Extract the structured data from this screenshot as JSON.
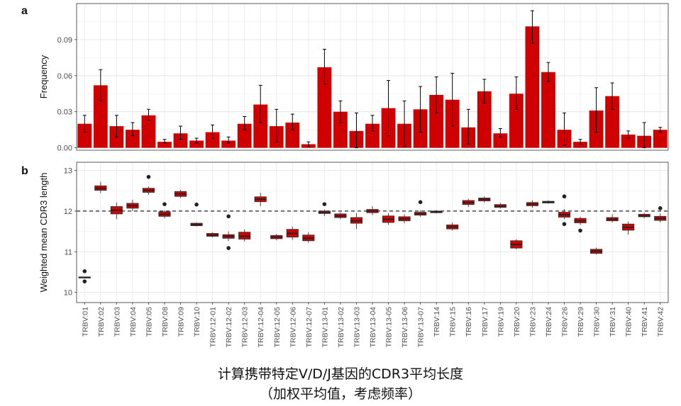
{
  "figure": {
    "caption_line1": "计算携带特定V/D/J基因的CDR3平均长度",
    "caption_line2": "（加权平均值，考虑频率）"
  },
  "chart_data": [
    {
      "panel_label": "a",
      "type": "bar",
      "ylabel": "Frequency",
      "ylim": [
        -0.002,
        0.12
      ],
      "yticks": [
        "0.00",
        "0.03",
        "0.06",
        "0.09"
      ],
      "ytick_values": [
        0,
        0.03,
        0.06,
        0.09
      ],
      "grid": true,
      "bar_color": "#d00000",
      "categories": [
        "TRBV:01",
        "TRBV:02",
        "TRBV:03",
        "TRBV:04",
        "TRBV:05",
        "TRBV:08",
        "TRBV:09",
        "TRBV:10",
        "TRBV:12-01",
        "TRBV:12-02",
        "TRBV:12-03",
        "TRBV:12-04",
        "TRBV:12-05",
        "TRBV:12-06",
        "TRBV:12-07",
        "TRBV:13-01",
        "TRBV:13-02",
        "TRBV:13-03",
        "TRBV:13-04",
        "TRBV:13-05",
        "TRBV:13-06",
        "TRBV:13-07",
        "TRBV:14",
        "TRBV:15",
        "TRBV:16",
        "TRBV:17",
        "TRBV:19",
        "TRBV:20",
        "TRBV:23",
        "TRBV:24",
        "TRBV:26",
        "TRBV:29",
        "TRBV:30",
        "TRBV:31",
        "TRBV:40",
        "TRBV:41",
        "TRBV:42"
      ],
      "values": [
        0.02,
        0.052,
        0.018,
        0.015,
        0.027,
        0.005,
        0.012,
        0.006,
        0.013,
        0.006,
        0.02,
        0.036,
        0.018,
        0.021,
        0.003,
        0.067,
        0.03,
        0.014,
        0.02,
        0.033,
        0.02,
        0.032,
        0.044,
        0.04,
        0.017,
        0.047,
        0.012,
        0.045,
        0.101,
        0.063,
        0.015,
        0.005,
        0.031,
        0.043,
        0.011,
        0.01,
        0.015
      ],
      "err_low": [
        0.013,
        0.039,
        0.009,
        0.01,
        0.023,
        0.004,
        0.007,
        0.004,
        0.008,
        0.004,
        0.015,
        0.021,
        0.005,
        0.015,
        0.001,
        0.053,
        0.021,
        0.0,
        0.014,
        0.01,
        0.001,
        0.013,
        0.029,
        0.018,
        0.003,
        0.037,
        0.009,
        0.032,
        0.087,
        0.055,
        0.002,
        0.003,
        0.013,
        0.032,
        0.008,
        0.0,
        0.013
      ],
      "err_high": [
        0.027,
        0.065,
        0.027,
        0.021,
        0.032,
        0.007,
        0.018,
        0.008,
        0.019,
        0.009,
        0.026,
        0.052,
        0.032,
        0.028,
        0.005,
        0.082,
        0.039,
        0.029,
        0.027,
        0.056,
        0.039,
        0.051,
        0.059,
        0.062,
        0.032,
        0.057,
        0.016,
        0.059,
        0.114,
        0.071,
        0.029,
        0.007,
        0.05,
        0.054,
        0.014,
        0.021,
        0.017
      ]
    },
    {
      "panel_label": "b",
      "type": "box",
      "ylabel": "Weighted mean  CDR3 length",
      "ylim": [
        9.75,
        13.2
      ],
      "yticks": [
        "10",
        "11",
        "12",
        "13"
      ],
      "ytick_values": [
        10,
        11,
        12,
        13
      ],
      "reference_line": 12,
      "grid": true,
      "box_color": "#d00000",
      "categories": [
        "TRBV:01",
        "TRBV:02",
        "TRBV:03",
        "TRBV:04",
        "TRBV:05",
        "TRBV:08",
        "TRBV:09",
        "TRBV:10",
        "TRBV:12-01",
        "TRBV:12-02",
        "TRBV:12-03",
        "TRBV:12-04",
        "TRBV:12-05",
        "TRBV:12-06",
        "TRBV:12-07",
        "TRBV:13-01",
        "TRBV:13-02",
        "TRBV:13-03",
        "TRBV:13-04",
        "TRBV:13-05",
        "TRBV:13-06",
        "TRBV:13-07",
        "TRBV:14",
        "TRBV:15",
        "TRBV:16",
        "TRBV:17",
        "TRBV:19",
        "TRBV:20",
        "TRBV:23",
        "TRBV:24",
        "TRBV:26",
        "TRBV:29",
        "TRBV:30",
        "TRBV:31",
        "TRBV:40",
        "TRBV:41",
        "TRBV:42"
      ],
      "boxes": [
        {
          "q1": 10.36,
          "median": 10.37,
          "q3": 10.38,
          "wlo": 10.36,
          "whi": 10.38,
          "outliers": [
            10.52,
            10.27
          ]
        },
        {
          "q1": 12.51,
          "median": 12.56,
          "q3": 12.62,
          "wlo": 12.44,
          "whi": 12.72,
          "outliers": []
        },
        {
          "q1": 11.93,
          "median": 12.02,
          "q3": 12.11,
          "wlo": 11.8,
          "whi": 12.21,
          "outliers": []
        },
        {
          "q1": 12.07,
          "median": 12.13,
          "q3": 12.19,
          "wlo": 12.0,
          "whi": 12.28,
          "outliers": []
        },
        {
          "q1": 12.46,
          "median": 12.51,
          "q3": 12.56,
          "wlo": 12.4,
          "whi": 12.6,
          "outliers": [
            12.84
          ]
        },
        {
          "q1": 11.87,
          "median": 11.92,
          "q3": 11.98,
          "wlo": 11.82,
          "whi": 12.02,
          "outliers": [
            12.17
          ]
        },
        {
          "q1": 12.36,
          "median": 12.42,
          "q3": 12.48,
          "wlo": 12.32,
          "whi": 12.52,
          "outliers": []
        },
        {
          "q1": 11.64,
          "median": 11.67,
          "q3": 11.7,
          "wlo": 11.62,
          "whi": 11.72,
          "outliers": [
            12.16
          ]
        },
        {
          "q1": 11.38,
          "median": 11.41,
          "q3": 11.45,
          "wlo": 11.35,
          "whi": 11.48,
          "outliers": []
        },
        {
          "q1": 11.33,
          "median": 11.38,
          "q3": 11.42,
          "wlo": 11.26,
          "whi": 11.5,
          "outliers": [
            11.87,
            11.09
          ]
        },
        {
          "q1": 11.31,
          "median": 11.38,
          "q3": 11.48,
          "wlo": 11.25,
          "whi": 11.55,
          "outliers": []
        },
        {
          "q1": 12.23,
          "median": 12.29,
          "q3": 12.35,
          "wlo": 12.12,
          "whi": 12.45,
          "outliers": []
        },
        {
          "q1": 11.32,
          "median": 11.36,
          "q3": 11.4,
          "wlo": 11.28,
          "whi": 11.44,
          "outliers": []
        },
        {
          "q1": 11.36,
          "median": 11.45,
          "q3": 11.55,
          "wlo": 11.29,
          "whi": 11.62,
          "outliers": []
        },
        {
          "q1": 11.27,
          "median": 11.33,
          "q3": 11.41,
          "wlo": 11.22,
          "whi": 11.48,
          "outliers": []
        },
        {
          "q1": 11.94,
          "median": 11.97,
          "q3": 12.0,
          "wlo": 11.88,
          "whi": 12.04,
          "outliers": [
            12.17
          ]
        },
        {
          "q1": 11.84,
          "median": 11.88,
          "q3": 11.93,
          "wlo": 11.8,
          "whi": 11.97,
          "outliers": []
        },
        {
          "q1": 11.7,
          "median": 11.76,
          "q3": 11.84,
          "wlo": 11.56,
          "whi": 11.95,
          "outliers": []
        },
        {
          "q1": 11.96,
          "median": 12.0,
          "q3": 12.04,
          "wlo": 11.9,
          "whi": 12.12,
          "outliers": []
        },
        {
          "q1": 11.72,
          "median": 11.8,
          "q3": 11.88,
          "wlo": 11.66,
          "whi": 11.95,
          "outliers": []
        },
        {
          "q1": 11.76,
          "median": 11.81,
          "q3": 11.86,
          "wlo": 11.7,
          "whi": 11.92,
          "outliers": []
        },
        {
          "q1": 11.9,
          "median": 11.93,
          "q3": 11.97,
          "wlo": 11.86,
          "whi": 12.02,
          "outliers": [
            12.22
          ]
        },
        {
          "q1": 11.96,
          "median": 11.98,
          "q3": 12.0,
          "wlo": 11.94,
          "whi": 12.02,
          "outliers": []
        },
        {
          "q1": 11.56,
          "median": 11.61,
          "q3": 11.66,
          "wlo": 11.52,
          "whi": 11.72,
          "outliers": []
        },
        {
          "q1": 12.16,
          "median": 12.21,
          "q3": 12.26,
          "wlo": 12.1,
          "whi": 12.3,
          "outliers": []
        },
        {
          "q1": 12.25,
          "median": 12.29,
          "q3": 12.32,
          "wlo": 12.21,
          "whi": 12.36,
          "outliers": []
        },
        {
          "q1": 12.09,
          "median": 12.12,
          "q3": 12.16,
          "wlo": 12.06,
          "whi": 12.2,
          "outliers": []
        },
        {
          "q1": 11.09,
          "median": 11.18,
          "q3": 11.27,
          "wlo": 11.06,
          "whi": 11.31,
          "outliers": []
        },
        {
          "q1": 12.13,
          "median": 12.17,
          "q3": 12.21,
          "wlo": 12.08,
          "whi": 12.26,
          "outliers": []
        },
        {
          "q1": 12.2,
          "median": 12.22,
          "q3": 12.24,
          "wlo": 12.18,
          "whi": 12.26,
          "outliers": []
        },
        {
          "q1": 11.85,
          "median": 11.91,
          "q3": 11.97,
          "wlo": 11.8,
          "whi": 12.05,
          "outliers": [
            12.36,
            11.68
          ]
        },
        {
          "q1": 11.71,
          "median": 11.76,
          "q3": 11.82,
          "wlo": 11.66,
          "whi": 11.86,
          "outliers": [
            11.52
          ]
        },
        {
          "q1": 10.96,
          "median": 11.01,
          "q3": 11.06,
          "wlo": 10.93,
          "whi": 11.1,
          "outliers": []
        },
        {
          "q1": 11.76,
          "median": 11.8,
          "q3": 11.84,
          "wlo": 11.72,
          "whi": 11.92,
          "outliers": []
        },
        {
          "q1": 11.53,
          "median": 11.6,
          "q3": 11.68,
          "wlo": 11.42,
          "whi": 11.74,
          "outliers": []
        },
        {
          "q1": 11.86,
          "median": 11.88,
          "q3": 11.92,
          "wlo": 11.82,
          "whi": 11.96,
          "outliers": []
        },
        {
          "q1": 11.77,
          "median": 11.82,
          "q3": 11.87,
          "wlo": 11.72,
          "whi": 11.94,
          "outliers": [
            12.07
          ]
        }
      ]
    }
  ]
}
